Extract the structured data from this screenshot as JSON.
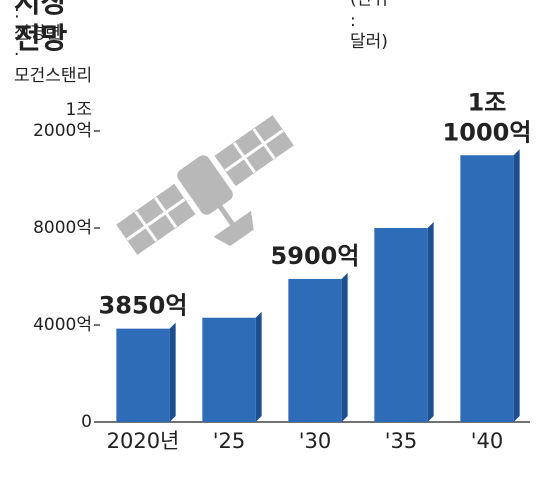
{
  "chart_data": {
    "type": "bar",
    "title": "세계 우주산업 시장 전망",
    "unit": "(단위 : 달러)",
    "subtitle": "자료 : 전경련 · 모건스탠리",
    "categories": [
      "2020년",
      "'25",
      "'30",
      "'35",
      "'40"
    ],
    "values": [
      3850,
      4300,
      5900,
      8000,
      11000
    ],
    "value_labels": [
      "3850억",
      null,
      "5900억",
      null,
      "1조 1000억"
    ],
    "color": "#2f6cb8",
    "ylim": [
      0,
      12000
    ],
    "yticks": [
      0,
      {
        "value": 4000,
        "label": "4000억"
      },
      {
        "value": 8000,
        "label": "8000억"
      },
      {
        "value": 12000,
        "label": "1조 2000억"
      }
    ],
    "grid": false
  }
}
